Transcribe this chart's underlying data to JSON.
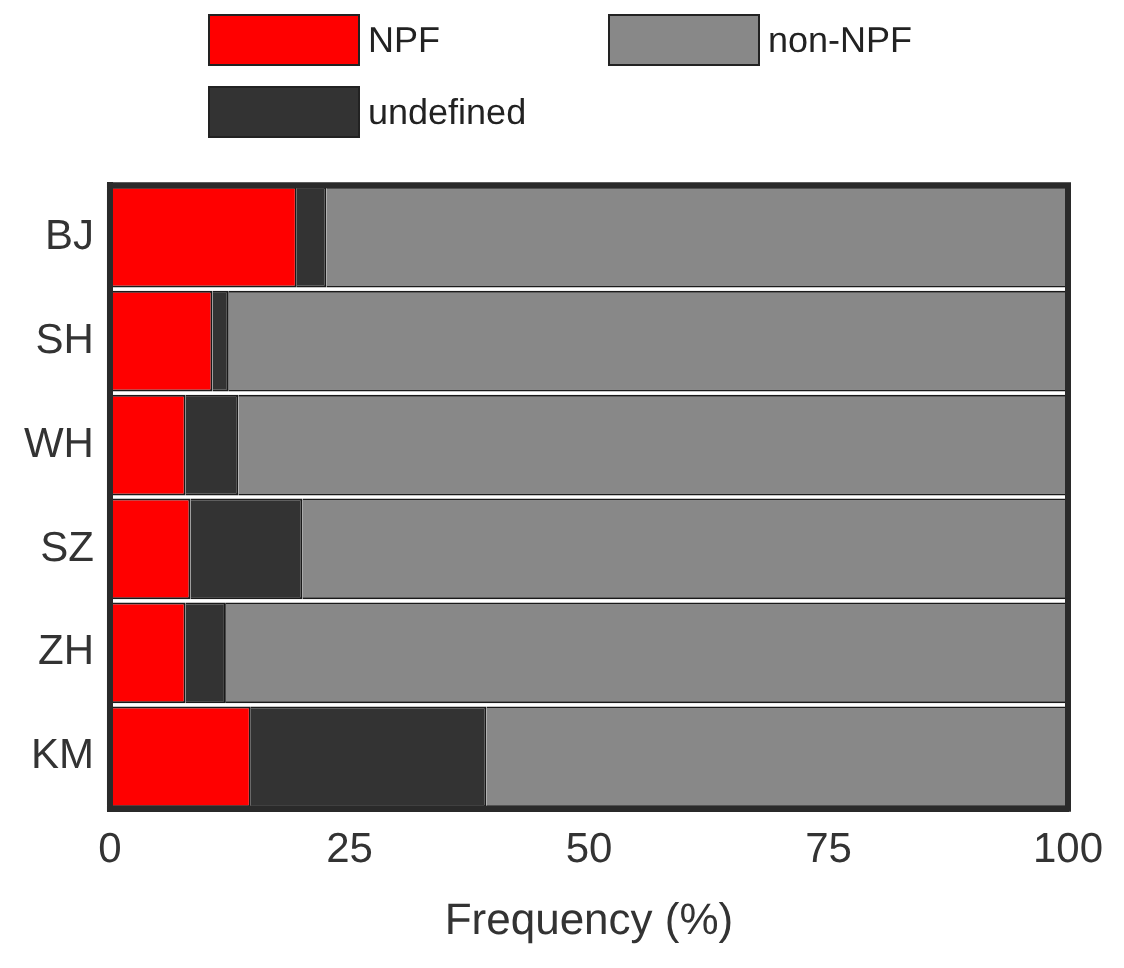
{
  "chart_data": {
    "type": "bar",
    "orientation": "horizontal",
    "stacked": true,
    "xlabel": "Frequency (%)",
    "categories": [
      "BJ",
      "SH",
      "WH",
      "SZ",
      "ZH",
      "KM"
    ],
    "series": [
      {
        "name": "NPF",
        "color": "#ff0000",
        "values": [
          19.5,
          10.7,
          7.9,
          8.4,
          7.9,
          14.7
        ]
      },
      {
        "name": "undefined",
        "color": "#333333",
        "values": [
          3.1,
          1.7,
          5.5,
          11.7,
          4.2,
          24.6
        ]
      },
      {
        "name": "non-NPF",
        "color": "#888888",
        "values": [
          77.4,
          87.6,
          86.6,
          79.9,
          87.9,
          60.7
        ]
      }
    ],
    "xlim": [
      0,
      100
    ],
    "xticks": [
      0,
      25,
      50,
      75,
      100
    ],
    "grid": false,
    "legend": "top"
  }
}
